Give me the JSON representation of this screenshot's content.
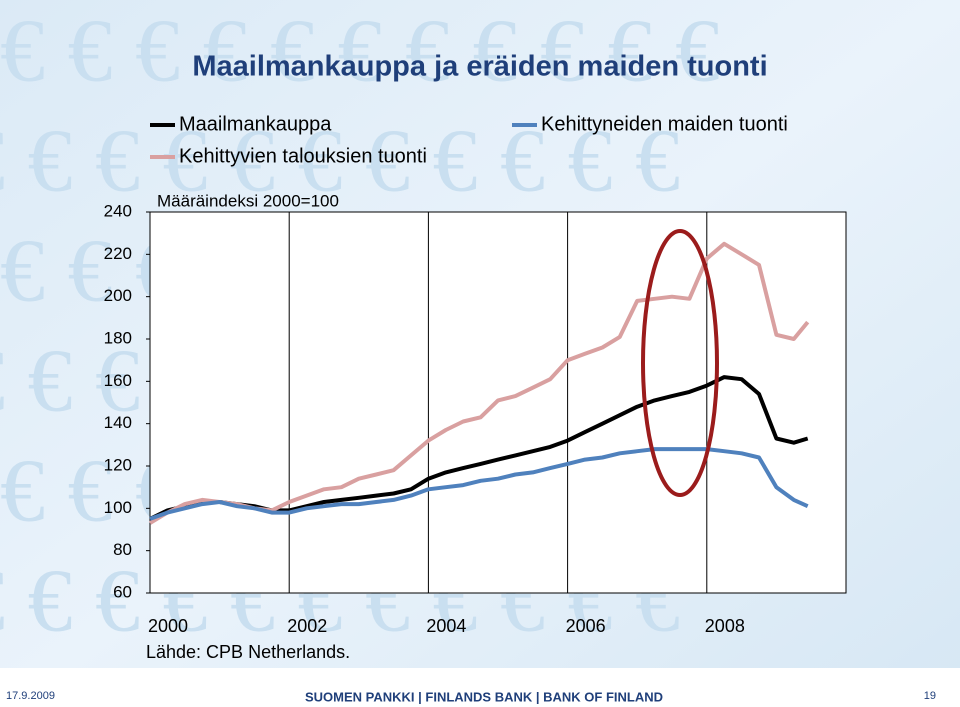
{
  "chart_data": {
    "type": "line",
    "title": "Maailmankauppa ja eräiden maiden tuonti",
    "subtitle": "Määräindeksi 2000=100",
    "source": "Lähde: CPB Netherlands.",
    "x": [
      2000,
      2000.25,
      2000.5,
      2000.75,
      2001,
      2001.25,
      2001.5,
      2001.75,
      2002,
      2002.25,
      2002.5,
      2002.75,
      2003,
      2003.25,
      2003.5,
      2003.75,
      2004,
      2004.25,
      2004.5,
      2004.75,
      2005,
      2005.25,
      2005.5,
      2005.75,
      2006,
      2006.25,
      2006.5,
      2006.75,
      2007,
      2007.25,
      2007.5,
      2007.75,
      2008,
      2008.25,
      2008.5,
      2008.75,
      2009,
      2009.25,
      2009.45
    ],
    "series": [
      {
        "name": "Maailmankauppa",
        "color": "#000000",
        "values": [
          95,
          99,
          101,
          103,
          103,
          102,
          101,
          99,
          99,
          101,
          103,
          104,
          105,
          106,
          107,
          109,
          114,
          117,
          119,
          121,
          123,
          125,
          127,
          129,
          132,
          136,
          140,
          144,
          148,
          151,
          153,
          155,
          158,
          162,
          161,
          154,
          133,
          131,
          133
        ]
      },
      {
        "name": "Kehittyvien talouksien tuonti",
        "color": "#d9a0a0",
        "values": [
          93,
          98,
          102,
          104,
          103,
          102,
          100,
          99,
          103,
          106,
          109,
          110,
          114,
          116,
          118,
          125,
          132,
          137,
          141,
          143,
          151,
          153,
          157,
          161,
          170,
          173,
          176,
          181,
          198,
          199,
          200,
          199,
          218,
          225,
          220,
          215,
          182,
          180,
          188
        ]
      },
      {
        "name": "Kehittyneiden maiden tuonti",
        "color": "#4f81bd",
        "values": [
          95,
          98,
          100,
          102,
          103,
          101,
          100,
          98,
          98,
          100,
          101,
          102,
          102,
          103,
          104,
          106,
          109,
          110,
          111,
          113,
          114,
          116,
          117,
          119,
          121,
          123,
          124,
          126,
          127,
          128,
          128,
          128,
          128,
          127,
          126,
          124,
          110,
          104,
          101
        ]
      }
    ],
    "xlim": [
      2000,
      2010
    ],
    "xticks": [
      2000,
      2002,
      2004,
      2006,
      2008
    ],
    "ylim": [
      60,
      240
    ],
    "yticks": [
      60,
      80,
      100,
      120,
      140,
      160,
      180,
      200,
      220,
      240
    ],
    "grid": "x"
  },
  "slide": {
    "date": "17.9.2009",
    "footer": "SUOMEN PANKKI | FINLANDS BANK | BANK OF FINLAND",
    "page": "19"
  }
}
